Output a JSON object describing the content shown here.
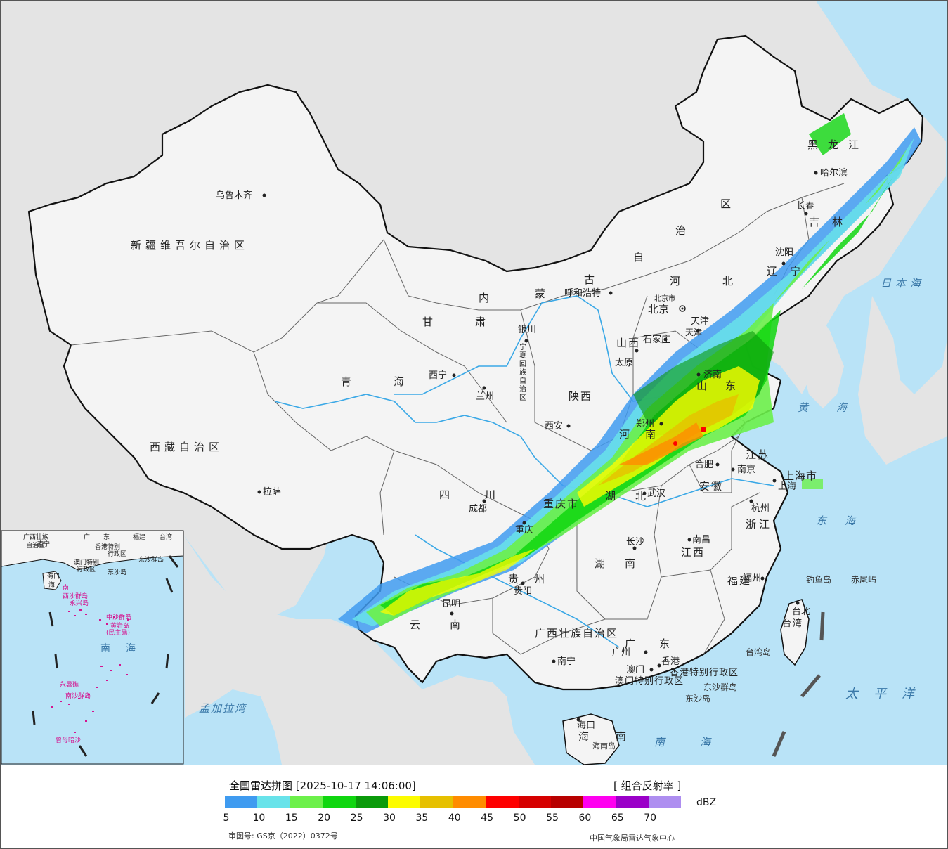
{
  "colors": {
    "sea": "#b9e3f7",
    "foreign_land": "#e4e4e4",
    "china_land": "#f4f4f4",
    "border": "#111111",
    "river": "#3aa8e6",
    "island_magenta": "#d4148f"
  },
  "map": {
    "provinces": {
      "xinjiang": "新疆维吾尔自治区",
      "xizang": "西藏自治区",
      "qinghai": "青海",
      "gansu": "甘肃",
      "neimenggu": "内蒙古自治区",
      "neimenggu_chars": [
        "内",
        "蒙",
        "古",
        "自",
        "治",
        "区"
      ],
      "ningxia_chars": [
        "宁",
        "夏",
        "回",
        "族",
        "自",
        "治",
        "区"
      ],
      "shaanxi": "陕西",
      "shanxi": "山西",
      "hebei": "河北",
      "heilongjiang": "黑龙江",
      "jilin": "吉林",
      "liaoning": "辽宁",
      "shandong": "山东",
      "henan": "河南",
      "jiangsu": "江苏",
      "anhui": "安徽",
      "shanghai": "上海市",
      "zhejiang": "浙江",
      "sichuan": "四川",
      "chongqing": "重庆市",
      "hubei": "湖北",
      "hunan": "湖南",
      "jiangxi": "江西",
      "guizhou": "贵州",
      "yunnan": "云南",
      "fujian": "福建",
      "guangxi": "广西壮族自治区",
      "guangdong": "广东",
      "hainan": "海南",
      "taiwan": "台湾",
      "tianjin": "天津",
      "beijing_small": "北京市",
      "hongkong_sar": "香港特别行政区",
      "macau_sar": "澳门特别行政区"
    },
    "cities": {
      "urumqi": "乌鲁木齐",
      "lhasa": "拉萨",
      "xining": "西宁",
      "lanzhou": "兰州",
      "yinchuan": "银川",
      "hohhot": "呼和浩特",
      "beijing": "北京",
      "tianjin": "天津",
      "shijiazhuang": "石家庄",
      "taiyuan": "太原",
      "xian": "西安",
      "zhengzhou": "郑州",
      "jinan": "济南",
      "shenyang": "沈阳",
      "changchun": "长春",
      "harbin": "哈尔滨",
      "hefei": "合肥",
      "nanjing": "南京",
      "shanghai": "上海",
      "hangzhou": "杭州",
      "wuhan": "武汉",
      "changsha": "长沙",
      "nanchang": "南昌",
      "fuzhou": "福州",
      "taipei": "台北",
      "chengdu": "成都",
      "chongqing": "重庆",
      "guiyang": "贵阳",
      "kunming": "昆明",
      "nanning": "南宁",
      "guangzhou": "广州",
      "hongkong": "香港",
      "macau": "澳门",
      "haikou": "海口"
    },
    "seas": {
      "japan_sea": "日本海",
      "yellow_sea": "黄海",
      "east_sea": "东海",
      "pacific": "太平洋",
      "south_sea": "南海",
      "bengal": "孟加拉湾"
    },
    "islands": {
      "diaoyu": "钓鱼岛",
      "chiwei": "赤尾屿",
      "taiwan_island": "台湾岛",
      "dongsha_islands": "东沙群岛",
      "dongsha_island": "东沙岛",
      "hainan_island": "海南岛"
    }
  },
  "inset": {
    "top_labels": [
      "广西壮族",
      "广",
      "东",
      "福建",
      "台湾",
      "自治区",
      "南宁",
      "香港特别",
      "行政区",
      "澳门特别",
      "行政区",
      "东沙群岛",
      "东沙岛",
      "海口",
      "海",
      "南",
      "西沙群岛",
      "永兴岛",
      "中沙群岛",
      "黄岩岛",
      "(民主礁)",
      "南",
      "海",
      "永暑礁",
      "南沙群岛",
      "曾母暗沙"
    ]
  },
  "legend": {
    "title": "全国雷达拼图 [2025-10-17 14:06:00]",
    "product": "[ 组合反射率 ]",
    "unit": "dBZ",
    "approval": "审图号: GS京（2022）0372号",
    "source": "中国气象局雷达气象中心",
    "ticks": [
      "5",
      "10",
      "15",
      "20",
      "25",
      "30",
      "35",
      "40",
      "45",
      "50",
      "55",
      "60",
      "65",
      "70"
    ],
    "colors": [
      "#3f9bf0",
      "#68e3ea",
      "#6cf04a",
      "#0fd60f",
      "#0a9a0a",
      "#fcfc00",
      "#e6c000",
      "#ff8c00",
      "#fe0000",
      "#d60000",
      "#b80000",
      "#ff00f0",
      "#9a00c8",
      "#ae8ef0"
    ]
  }
}
